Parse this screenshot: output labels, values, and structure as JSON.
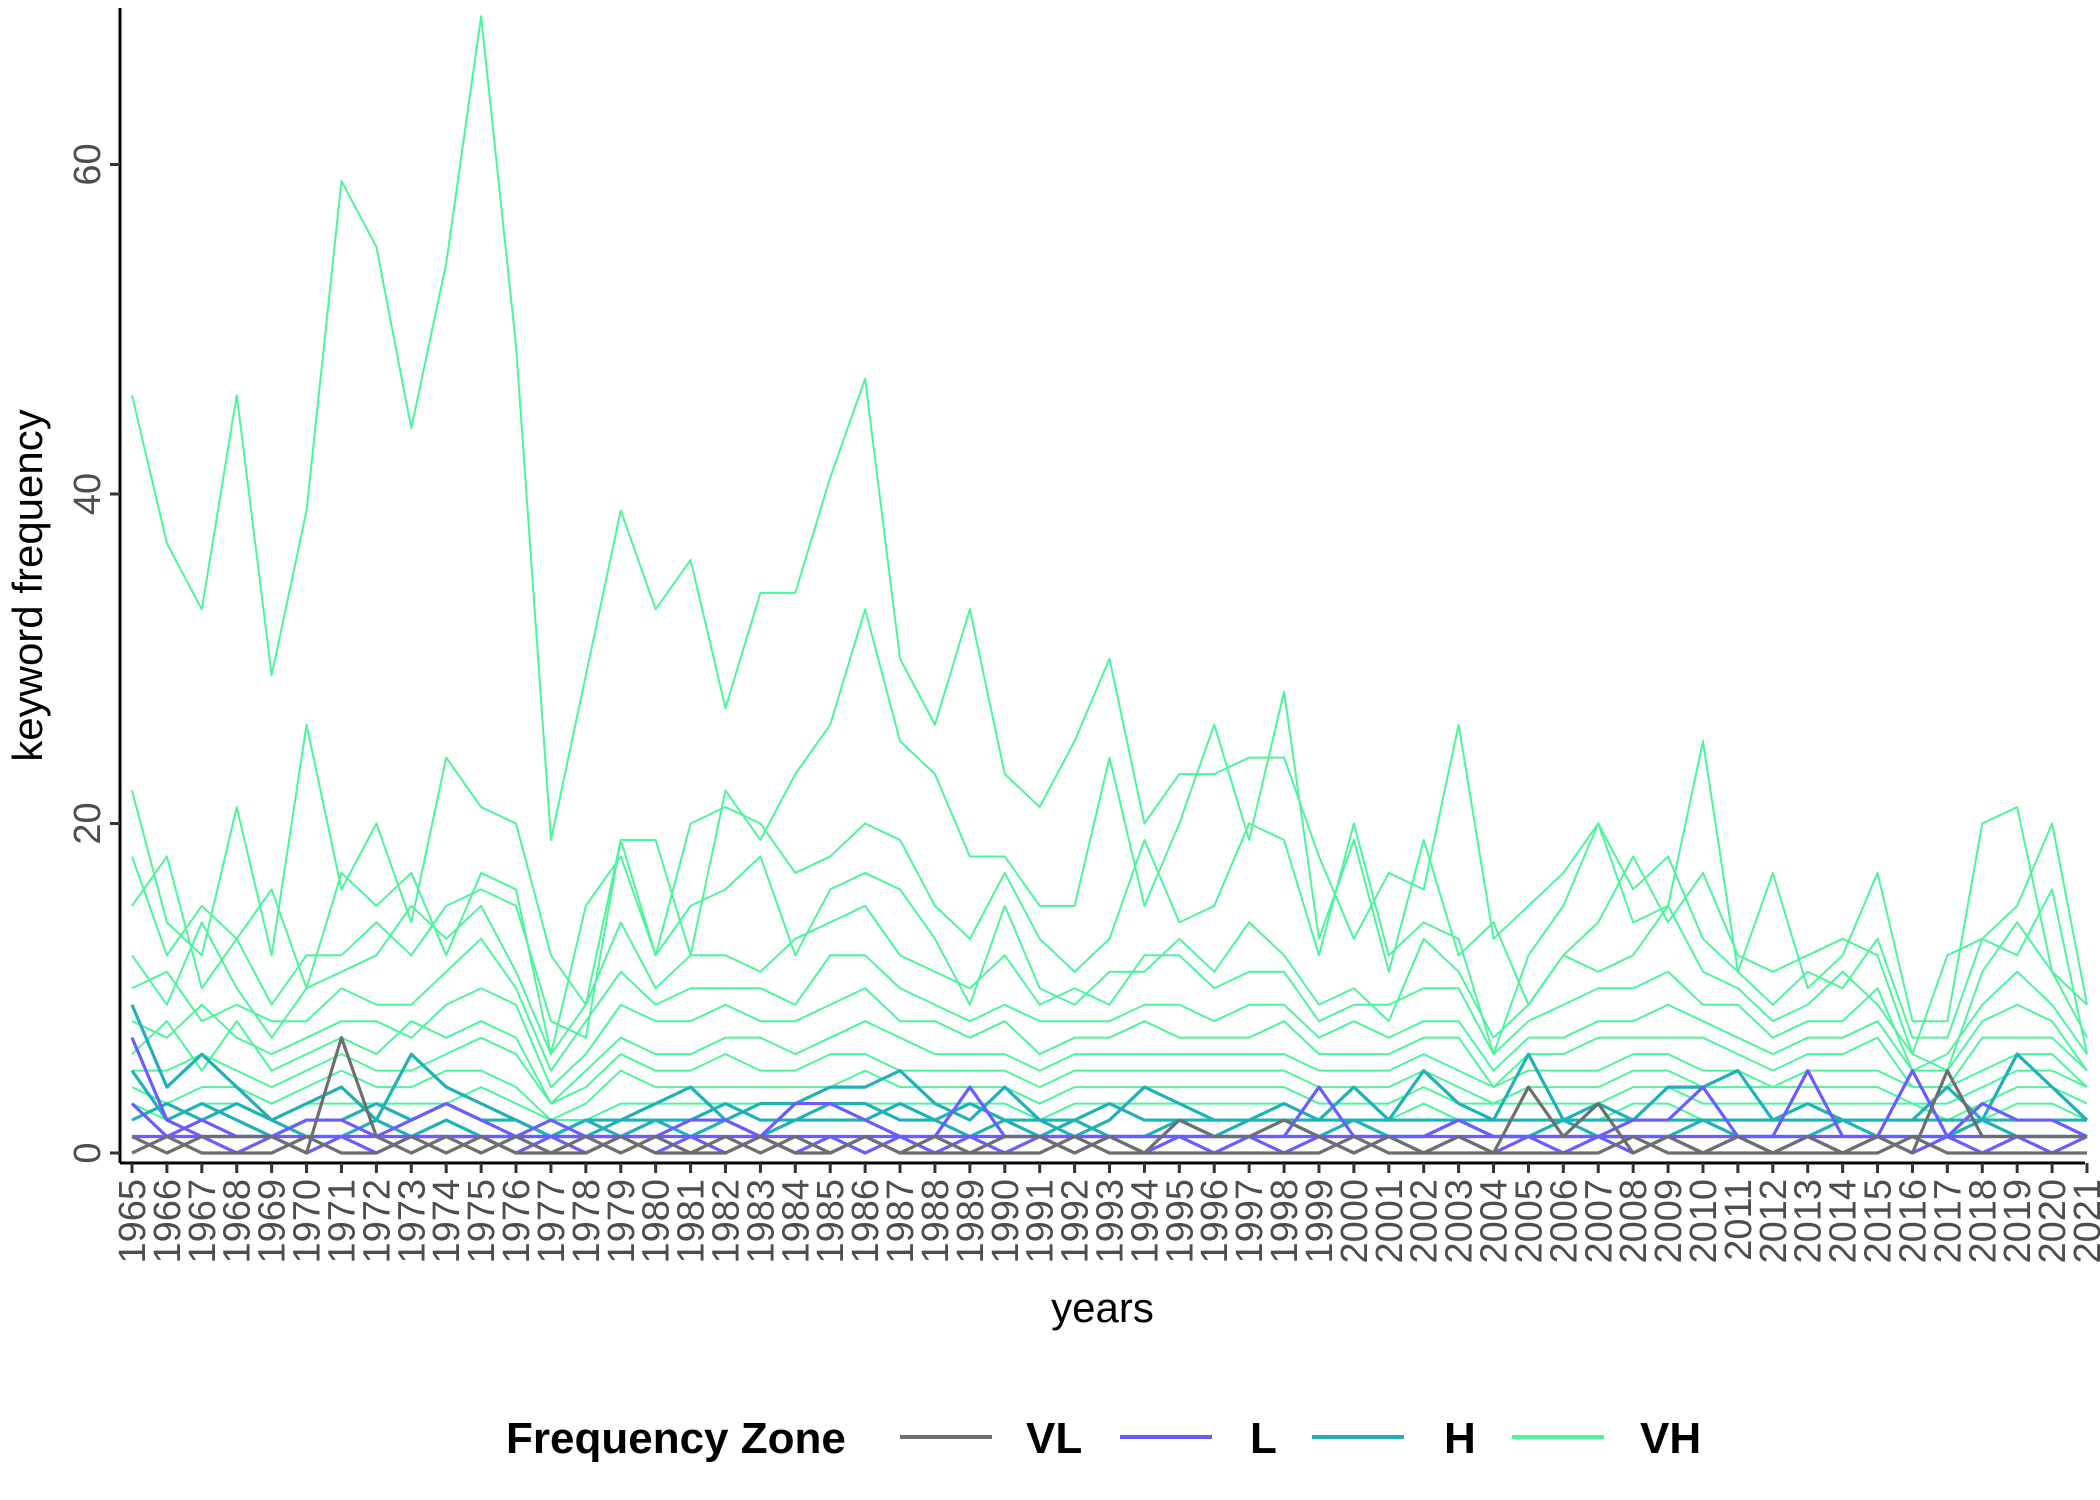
{
  "chart_data": {
    "type": "line",
    "title": "",
    "xlabel": "years",
    "ylabel": "keyword frequency",
    "ylim": [
      0,
      69.5
    ],
    "yticks": [
      0,
      20,
      40,
      60
    ],
    "grid": false,
    "legend_position": "bottom",
    "legend_title": "Frequency Zone",
    "x": [
      1965,
      1966,
      1967,
      1968,
      1969,
      1970,
      1971,
      1972,
      1973,
      1974,
      1975,
      1976,
      1977,
      1978,
      1979,
      1980,
      1981,
      1982,
      1983,
      1984,
      1985,
      1986,
      1987,
      1988,
      1989,
      1990,
      1991,
      1992,
      1993,
      1994,
      1995,
      1996,
      1997,
      1998,
      1999,
      2000,
      2001,
      2002,
      2003,
      2004,
      2005,
      2006,
      2007,
      2008,
      2009,
      2010,
      2011,
      2012,
      2013,
      2014,
      2015,
      2016,
      2017,
      2018,
      2019,
      2020,
      2021
    ],
    "series_legend": [
      {
        "name": "VL",
        "color": "#6e6e6e"
      },
      {
        "name": "L",
        "color": "#6a5cff"
      },
      {
        "name": "H",
        "color": "#1fb0b8"
      },
      {
        "name": "VH",
        "color": "#4cf59a"
      }
    ],
    "series": [
      {
        "zone": "VH",
        "values": [
          46,
          37,
          33,
          46,
          29,
          39,
          59,
          55,
          44,
          54,
          69,
          49,
          19,
          29,
          39,
          33,
          36,
          27,
          34,
          34,
          41,
          47,
          30,
          26,
          33,
          23,
          21,
          25,
          30,
          20,
          23,
          23,
          24,
          24,
          18,
          13,
          17,
          16,
          26,
          13,
          15,
          17,
          20,
          14,
          15,
          25,
          11,
          17,
          10,
          12,
          17,
          8,
          8,
          20,
          21,
          11,
          9
        ]
      },
      {
        "zone": "VH",
        "values": [
          22,
          14,
          12,
          21,
          12,
          26,
          16,
          20,
          14,
          24,
          21,
          20,
          12,
          9,
          19,
          19,
          12,
          22,
          19,
          23,
          26,
          33,
          25,
          23,
          18,
          18,
          15,
          15,
          24,
          15,
          20,
          26,
          19,
          28,
          13,
          19,
          11,
          19,
          12,
          14,
          9,
          12,
          14,
          18,
          14,
          17,
          12,
          11,
          12,
          13,
          12,
          6,
          12,
          13,
          15,
          20,
          9
        ]
      },
      {
        "zone": "VH",
        "values": [
          18,
          12,
          15,
          13,
          16,
          10,
          17,
          15,
          17,
          12,
          17,
          16,
          6,
          15,
          18,
          12,
          20,
          21,
          20,
          17,
          18,
          20,
          19,
          15,
          13,
          17,
          13,
          11,
          13,
          19,
          14,
          15,
          20,
          19,
          12,
          20,
          12,
          14,
          13,
          6,
          12,
          15,
          20,
          16,
          18,
          13,
          11,
          9,
          11,
          10,
          13,
          7,
          7,
          13,
          12,
          16,
          6
        ]
      },
      {
        "zone": "VH",
        "values": [
          15,
          18,
          10,
          13,
          9,
          12,
          12,
          14,
          12,
          15,
          16,
          15,
          8,
          7,
          19,
          12,
          15,
          16,
          18,
          12,
          16,
          17,
          16,
          13,
          9,
          15,
          10,
          9,
          11,
          11,
          13,
          11,
          14,
          12,
          9,
          10,
          8,
          13,
          11,
          7,
          9,
          12,
          11,
          12,
          15,
          11,
          10,
          8,
          9,
          11,
          9,
          6,
          5,
          11,
          14,
          11,
          7
        ]
      },
      {
        "zone": "VH",
        "values": [
          12,
          9,
          14,
          10,
          7,
          10,
          11,
          12,
          15,
          13,
          15,
          11,
          6,
          9,
          14,
          10,
          12,
          12,
          11,
          13,
          14,
          15,
          12,
          11,
          10,
          12,
          9,
          10,
          9,
          12,
          12,
          10,
          11,
          11,
          8,
          9,
          9,
          10,
          10,
          6,
          8,
          9,
          10,
          10,
          11,
          9,
          9,
          7,
          8,
          8,
          10,
          5,
          6,
          9,
          11,
          9,
          6
        ]
      },
      {
        "zone": "VH",
        "values": [
          10,
          11,
          8,
          9,
          8,
          8,
          10,
          9,
          9,
          11,
          13,
          10,
          5,
          8,
          11,
          9,
          10,
          10,
          10,
          9,
          12,
          12,
          10,
          9,
          8,
          9,
          8,
          8,
          8,
          9,
          9,
          8,
          9,
          9,
          7,
          8,
          7,
          8,
          8,
          5,
          7,
          7,
          8,
          8,
          9,
          8,
          7,
          6,
          7,
          7,
          8,
          5,
          5,
          8,
          9,
          8,
          5
        ]
      },
      {
        "zone": "VH",
        "values": [
          8,
          7,
          9,
          7,
          6,
          7,
          8,
          8,
          7,
          9,
          10,
          9,
          4,
          6,
          9,
          8,
          8,
          9,
          8,
          8,
          9,
          10,
          8,
          8,
          7,
          8,
          6,
          7,
          7,
          8,
          7,
          7,
          7,
          8,
          6,
          6,
          6,
          7,
          7,
          4,
          6,
          6,
          7,
          7,
          7,
          7,
          6,
          5,
          6,
          6,
          7,
          4,
          4,
          7,
          7,
          7,
          5
        ]
      },
      {
        "zone": "VH",
        "values": [
          6,
          8,
          5,
          8,
          5,
          6,
          7,
          6,
          8,
          7,
          8,
          7,
          3,
          5,
          7,
          6,
          6,
          7,
          7,
          6,
          7,
          8,
          7,
          6,
          6,
          6,
          5,
          6,
          6,
          6,
          6,
          6,
          6,
          6,
          5,
          5,
          5,
          6,
          5,
          4,
          5,
          5,
          5,
          6,
          6,
          5,
          5,
          4,
          5,
          5,
          5,
          4,
          4,
          5,
          6,
          6,
          4
        ]
      },
      {
        "zone": "VH",
        "values": [
          5,
          5,
          6,
          5,
          4,
          5,
          6,
          5,
          5,
          6,
          7,
          6,
          3,
          4,
          6,
          5,
          5,
          6,
          5,
          5,
          6,
          6,
          5,
          5,
          5,
          5,
          4,
          5,
          5,
          5,
          5,
          5,
          5,
          5,
          4,
          4,
          4,
          5,
          4,
          3,
          4,
          4,
          4,
          5,
          5,
          4,
          4,
          4,
          4,
          4,
          4,
          3,
          3,
          4,
          5,
          5,
          4
        ]
      },
      {
        "zone": "VH",
        "values": [
          4,
          3,
          4,
          4,
          3,
          4,
          5,
          4,
          4,
          5,
          5,
          4,
          2,
          3,
          5,
          4,
          4,
          4,
          4,
          4,
          4,
          5,
          4,
          4,
          4,
          4,
          3,
          4,
          4,
          4,
          4,
          4,
          4,
          4,
          3,
          3,
          3,
          4,
          3,
          3,
          3,
          3,
          3,
          4,
          4,
          3,
          3,
          3,
          3,
          3,
          3,
          3,
          2,
          3,
          4,
          4,
          3
        ]
      },
      {
        "zone": "VH",
        "values": [
          3,
          2,
          3,
          3,
          2,
          3,
          3,
          3,
          3,
          3,
          4,
          3,
          2,
          2,
          3,
          3,
          3,
          3,
          3,
          3,
          3,
          3,
          3,
          3,
          3,
          3,
          2,
          3,
          3,
          3,
          3,
          3,
          3,
          3,
          2,
          2,
          2,
          3,
          2,
          2,
          2,
          2,
          2,
          3,
          3,
          2,
          2,
          2,
          2,
          2,
          2,
          2,
          2,
          2,
          3,
          3,
          2
        ]
      },
      {
        "zone": "H",
        "values": [
          9,
          4,
          6,
          4,
          2,
          3,
          4,
          2,
          6,
          4,
          3,
          2,
          1,
          2,
          2,
          3,
          4,
          2,
          3,
          3,
          4,
          4,
          5,
          3,
          2,
          4,
          2,
          1,
          2,
          4,
          3,
          2,
          2,
          3,
          2,
          4,
          2,
          5,
          3,
          2,
          6,
          2,
          3,
          2,
          4,
          4,
          5,
          2,
          3,
          2,
          2,
          2,
          4,
          2,
          6,
          4,
          2
        ]
      },
      {
        "zone": "H",
        "values": [
          5,
          2,
          3,
          2,
          1,
          2,
          2,
          3,
          2,
          3,
          2,
          2,
          1,
          1,
          2,
          2,
          2,
          3,
          2,
          2,
          3,
          3,
          2,
          2,
          3,
          2,
          2,
          2,
          3,
          2,
          2,
          2,
          2,
          2,
          2,
          2,
          2,
          2,
          2,
          2,
          2,
          2,
          2,
          2,
          2,
          2,
          2,
          2,
          2,
          2,
          2,
          2,
          2,
          2,
          2,
          2,
          2
        ]
      },
      {
        "zone": "H",
        "values": [
          2,
          3,
          2,
          3,
          2,
          1,
          1,
          2,
          1,
          2,
          1,
          1,
          1,
          2,
          1,
          2,
          1,
          2,
          1,
          2,
          2,
          2,
          3,
          2,
          1,
          2,
          1,
          2,
          1,
          1,
          2,
          1,
          2,
          2,
          1,
          2,
          1,
          1,
          2,
          1,
          1,
          2,
          1,
          1,
          1,
          2,
          1,
          1,
          1,
          2,
          1,
          1,
          1,
          2,
          1,
          1,
          1
        ]
      },
      {
        "zone": "L",
        "values": [
          7,
          2,
          1,
          1,
          1,
          2,
          2,
          1,
          2,
          3,
          2,
          1,
          2,
          1,
          1,
          1,
          2,
          2,
          1,
          3,
          3,
          2,
          1,
          1,
          4,
          1,
          1,
          1,
          1,
          1,
          1,
          1,
          1,
          1,
          4,
          1,
          1,
          1,
          2,
          1,
          1,
          1,
          1,
          2,
          2,
          4,
          1,
          1,
          5,
          1,
          1,
          5,
          1,
          3,
          2,
          2,
          1
        ]
      },
      {
        "zone": "L",
        "values": [
          3,
          1,
          2,
          1,
          1,
          1,
          1,
          1,
          1,
          1,
          1,
          1,
          1,
          1,
          1,
          1,
          1,
          1,
          1,
          1,
          1,
          1,
          1,
          1,
          1,
          1,
          1,
          1,
          1,
          1,
          1,
          1,
          1,
          1,
          1,
          1,
          1,
          1,
          1,
          1,
          1,
          1,
          1,
          1,
          1,
          1,
          1,
          1,
          1,
          1,
          1,
          1,
          1,
          1,
          1,
          1,
          1
        ]
      },
      {
        "zone": "L",
        "values": [
          1,
          1,
          1,
          0,
          1,
          0,
          1,
          0,
          1,
          1,
          1,
          0,
          1,
          0,
          1,
          0,
          1,
          0,
          1,
          0,
          1,
          0,
          1,
          0,
          1,
          0,
          1,
          0,
          1,
          0,
          1,
          0,
          1,
          0,
          1,
          0,
          1,
          0,
          1,
          0,
          1,
          0,
          1,
          0,
          1,
          0,
          1,
          0,
          1,
          0,
          1,
          0,
          1,
          0,
          1,
          0,
          1
        ]
      },
      {
        "zone": "VL",
        "values": [
          1,
          0,
          1,
          1,
          1,
          0,
          7,
          1,
          0,
          1,
          0,
          1,
          0,
          1,
          0,
          1,
          0,
          1,
          0,
          1,
          0,
          1,
          0,
          1,
          0,
          1,
          1,
          0,
          1,
          0,
          2,
          1,
          1,
          2,
          1,
          0,
          1,
          0,
          1,
          0,
          4,
          1,
          3,
          0,
          1,
          0,
          1,
          0,
          1,
          0,
          1,
          0,
          5,
          1,
          1,
          1,
          1
        ]
      },
      {
        "zone": "VL",
        "values": [
          0,
          1,
          0,
          0,
          0,
          1,
          0,
          0,
          1,
          0,
          1,
          0,
          0,
          0,
          1,
          0,
          0,
          0,
          1,
          0,
          0,
          1,
          0,
          0,
          0,
          0,
          0,
          1,
          0,
          0,
          0,
          0,
          0,
          0,
          0,
          1,
          0,
          0,
          0,
          0,
          0,
          0,
          0,
          1,
          0,
          0,
          0,
          0,
          0,
          0,
          0,
          1,
          0,
          0,
          0,
          0,
          0
        ]
      }
    ]
  }
}
